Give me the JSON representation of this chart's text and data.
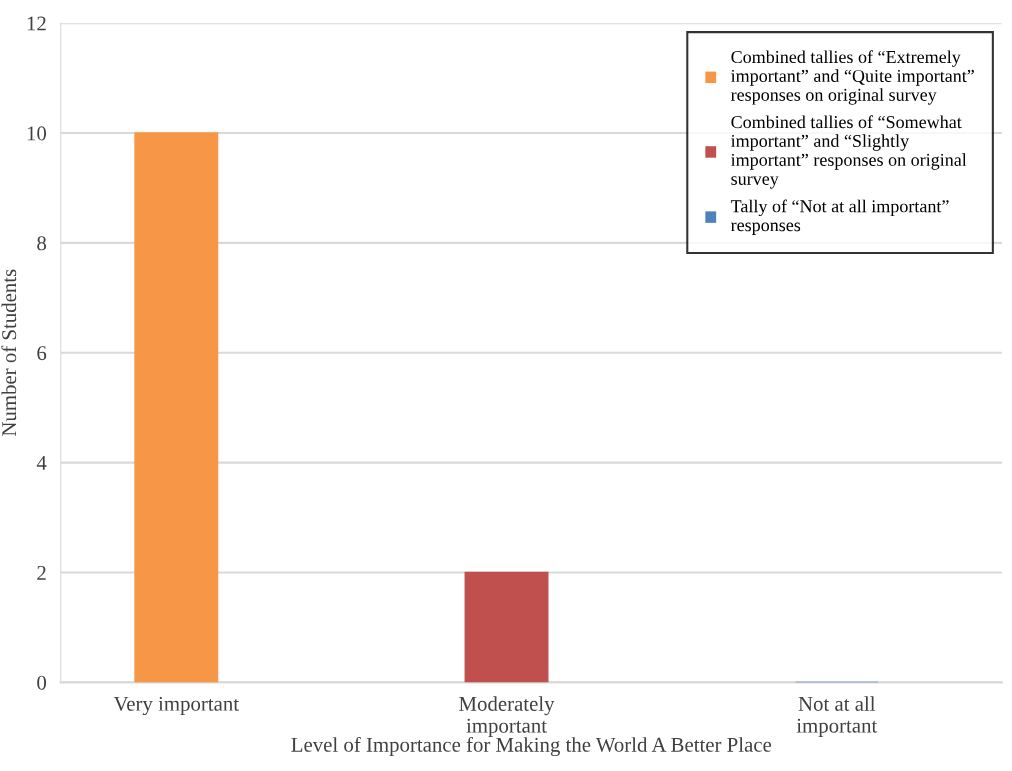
{
  "chart_data": {
    "type": "bar",
    "xlabel": "Level of Importance for Making the World A Better Place",
    "ylabel": "Number of Students",
    "categories": [
      "Very important",
      "Moderately\nimportant",
      "Not at all\nimportant"
    ],
    "series": [
      {
        "name": "Combined tallies of “Extremely\nimportant” and “Quite important”\nresponses on original survey",
        "color": "#f79646",
        "values": [
          10,
          null,
          null
        ]
      },
      {
        "name": "Combined tallies of “Somewhat\nimportant” and “Slightly\nimportant” responses on original\nsurvey",
        "color": "#c0504d",
        "values": [
          null,
          2,
          null
        ]
      },
      {
        "name": "Tally of “Not at all important”\nresponses",
        "color": "#4f81bd",
        "values": [
          null,
          null,
          0
        ]
      }
    ],
    "ylim": [
      0,
      12
    ],
    "yticks": [
      0,
      2,
      4,
      6,
      8,
      10,
      12
    ],
    "grid": "y",
    "legend": "top right"
  }
}
